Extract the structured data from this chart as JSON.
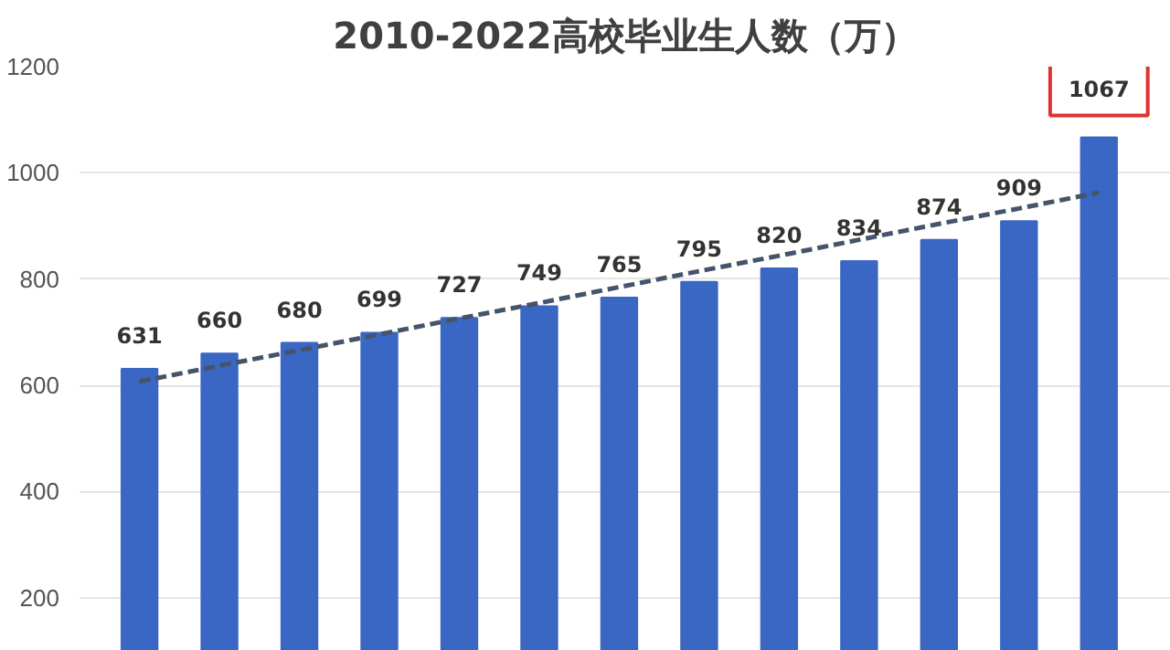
{
  "chart_data": {
    "type": "bar",
    "title": "2010-2022高校毕业生人数（万）",
    "categories": [
      null,
      null,
      null,
      null,
      null,
      null,
      null,
      null,
      null,
      null,
      null,
      null,
      null
    ],
    "series": [
      {
        "color": "#3a66c4",
        "values": [
          631,
          660,
          680,
          699,
          727,
          749,
          765,
          795,
          820,
          834,
          874,
          909,
          1067
        ],
        "value_labels": [
          "631",
          "660",
          "680",
          "699",
          "727",
          "749",
          "765",
          "795",
          "820",
          "834",
          "874",
          "909",
          "1067"
        ]
      },
      {
        "type": "line",
        "color": "#44546a",
        "line_style": "dashed",
        "values": [
          607,
          637,
          666,
          696,
          726,
          755,
          785,
          815,
          844,
          874,
          904,
          933,
          963
        ]
      }
    ],
    "ylim": [
      100,
      1200
    ],
    "yticks": [
      200,
      400,
      600,
      800,
      1000,
      1200
    ],
    "grid": "y",
    "tick_labels": "y"
  }
}
